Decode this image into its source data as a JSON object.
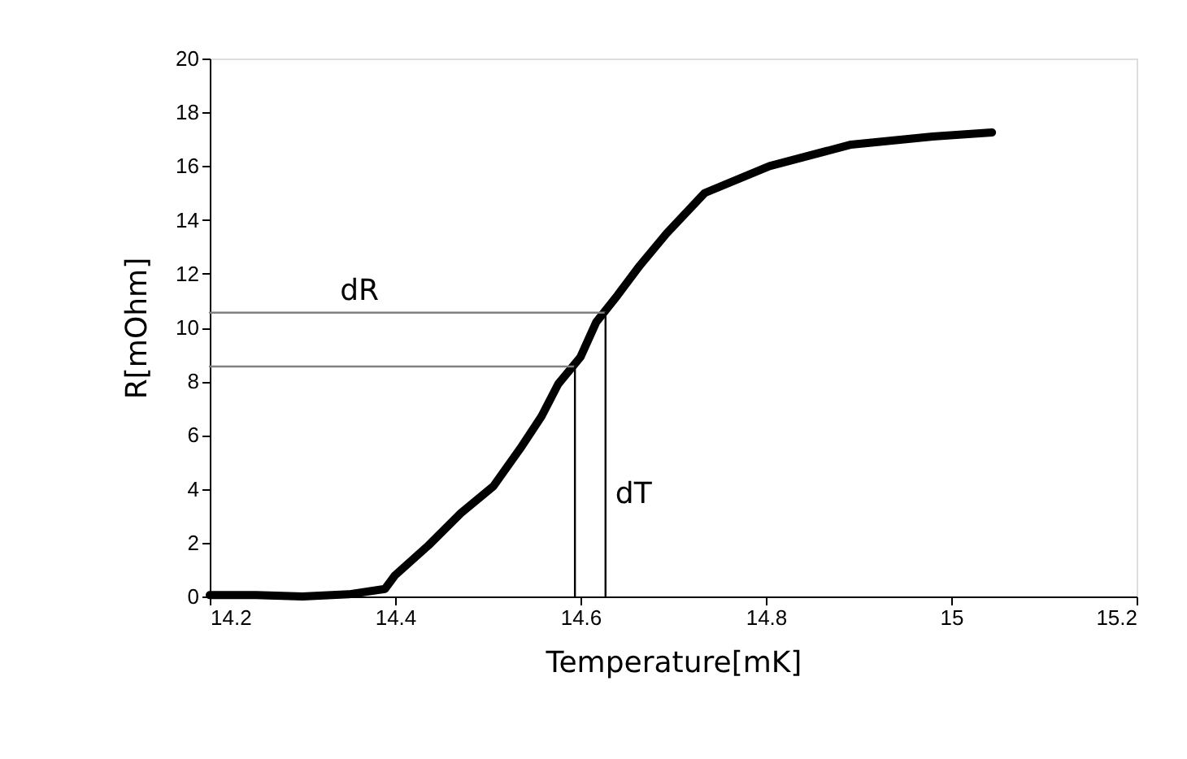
{
  "chart_data": {
    "type": "line",
    "xlabel": "Temperature[mK]",
    "ylabel": "R[mOhm]",
    "xlim": [
      14.2,
      15.2
    ],
    "xticks": [
      14.2,
      14.4,
      14.6,
      14.8,
      15,
      15.2
    ],
    "ylim": [
      0,
      20
    ],
    "yticks": [
      0,
      2,
      4,
      6,
      8,
      10,
      12,
      14,
      16,
      18,
      20
    ],
    "grid": false,
    "marker": "none",
    "line_style": "solid",
    "series": [
      {
        "color": "#000000",
        "x": [
          14.2,
          14.25,
          14.3,
          14.35,
          14.389,
          14.4,
          14.436,
          14.471,
          14.506,
          14.535,
          14.558,
          14.576,
          14.6,
          14.617,
          14.64,
          14.664,
          14.693,
          14.734,
          14.804,
          14.892,
          14.98,
          15.044
        ],
        "values": [
          0.05,
          0.05,
          0.0,
          0.08,
          0.28,
          0.79,
          1.9,
          3.1,
          4.1,
          5.5,
          6.7,
          7.9,
          8.9,
          10.2,
          11.2,
          12.3,
          13.5,
          15.0,
          16.0,
          16.8,
          17.1,
          17.25
        ]
      },
      {
        "color": "#808080",
        "x": [
          14.2,
          14.627
        ],
        "values": [
          10.55,
          10.55
        ]
      },
      {
        "color": "#808080",
        "x": [
          14.2,
          14.594
        ],
        "values": [
          8.55,
          8.55
        ]
      },
      {
        "color": "#000000",
        "x": [
          14.594,
          14.594
        ],
        "values": [
          0,
          8.55
        ]
      },
      {
        "color": "#000000",
        "x": [
          14.627,
          14.627
        ],
        "values": [
          0,
          10.55
        ]
      }
    ],
    "annotations": [
      {
        "text": "dR",
        "x": 14.33,
        "y": 10.55
      },
      {
        "text": "dT",
        "x": 14.627,
        "y": 3.0
      }
    ]
  }
}
